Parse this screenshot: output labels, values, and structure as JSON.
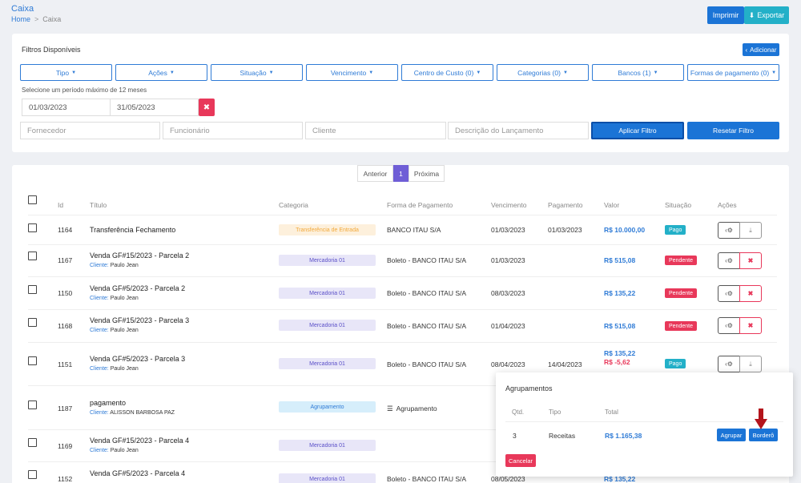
{
  "header": {
    "title": "Caixa",
    "breadcrumb": {
      "home": "Home",
      "separator": ">",
      "current": "Caixa"
    },
    "print_label": "Imprimir",
    "export_label": "Exportar"
  },
  "filters": {
    "title": "Filtros Disponíveis",
    "add_label": "Adicionar",
    "dropdowns": [
      "Tipo",
      "Ações",
      "Situação",
      "Vencimento",
      "Centro de Custo (0)",
      "Categorias (0)",
      "Bancos (1)",
      "Formas de pagamento (0)"
    ],
    "period_note": "Selecione um período máximo de 12 meses",
    "date_start": "01/03/2023",
    "date_end": "31/05/2023",
    "placeholders": {
      "fornecedor": "Fornecedor",
      "funcionario": "Funcionário",
      "cliente": "Cliente",
      "descricao": "Descrição do Lançamento"
    },
    "apply_label": "Aplicar Filtro",
    "reset_label": "Resetar Filtro"
  },
  "pager": {
    "prev": "Anterior",
    "page": "1",
    "next": "Próxima"
  },
  "table": {
    "columns": {
      "id": "Id",
      "titulo": "Título",
      "categoria": "Categoria",
      "forma": "Forma de Pagamento",
      "vencimento": "Vencimento",
      "pagamento": "Pagamento",
      "valor": "Valor",
      "situacao": "Situação",
      "acoes": "Ações"
    },
    "client_label": "Cliente:",
    "rows": [
      {
        "id": "1164",
        "title": "Transferência Fechamento",
        "client": "",
        "category": "Transferência de Entrada",
        "payment": "BANCO ITAU S/A",
        "due": "01/03/2023",
        "paid": "01/03/2023",
        "value": "R$ 10.000,00",
        "status": "Pago"
      },
      {
        "id": "1167",
        "title": "Venda GF#15/2023 - Parcela 2",
        "client": "Paulo Jean",
        "category": "Mercadoria 01",
        "payment": "Boleto - BANCO ITAU S/A",
        "due": "01/03/2023",
        "paid": "",
        "value": "R$ 515,08",
        "status": "Pendente"
      },
      {
        "id": "1150",
        "title": "Venda GF#5/2023 - Parcela 2",
        "client": "Paulo Jean",
        "category": "Mercadoria 01",
        "payment": "Boleto - BANCO ITAU S/A",
        "due": "08/03/2023",
        "paid": "",
        "value": "R$ 135,22",
        "status": "Pendente"
      },
      {
        "id": "1168",
        "title": "Venda GF#15/2023 - Parcela 3",
        "client": "Paulo Jean",
        "category": "Mercadoria 01",
        "payment": "Boleto - BANCO ITAU S/A",
        "due": "01/04/2023",
        "paid": "",
        "value": "R$ 515,08",
        "status": "Pendente"
      },
      {
        "id": "1151",
        "title": "Venda GF#5/2023 - Parcela 3",
        "client": "Paulo Jean",
        "category": "Mercadoria 01",
        "payment": "Boleto - BANCO ITAU S/A",
        "due": "08/04/2023",
        "paid": "14/04/2023",
        "value": "R$ 135,22",
        "value2": "R$ -5,62",
        "status": "Pago"
      },
      {
        "id": "1187",
        "title": "pagamento",
        "client": "ALISSON BARBOSA PAZ",
        "category": "Agrupamento",
        "payment": "Agrupamento",
        "due": "",
        "paid": "",
        "value": "",
        "status": ""
      },
      {
        "id": "1169",
        "title": "Venda GF#15/2023 - Parcela 4",
        "client": "Paulo Jean",
        "category": "Mercadoria 01",
        "payment": "",
        "due": "",
        "paid": "",
        "value": "",
        "status": ""
      },
      {
        "id": "1152",
        "title": "Venda GF#5/2023 - Parcela 4",
        "client": "",
        "category": "Mercadoria 01",
        "payment": "Boleto - BANCO ITAU S/A",
        "due": "08/05/2023",
        "paid": "",
        "value": "R$ 135,22",
        "status": ""
      }
    ]
  },
  "popup": {
    "title": "Agrupamentos",
    "col_qtd": "Qtd.",
    "col_tipo": "Tipo",
    "col_total": "Total",
    "qtd": "3",
    "tipo": "Receitas",
    "total": "R$ 1.165,38",
    "group_label": "Agrupar",
    "bordero_label": "Borderô",
    "cancel_label": "Cancelar"
  },
  "colors": {
    "primary": "#1b74d6",
    "info": "#23b0c8",
    "danger": "#e8385a",
    "pager_active": "#6f5ed6"
  }
}
